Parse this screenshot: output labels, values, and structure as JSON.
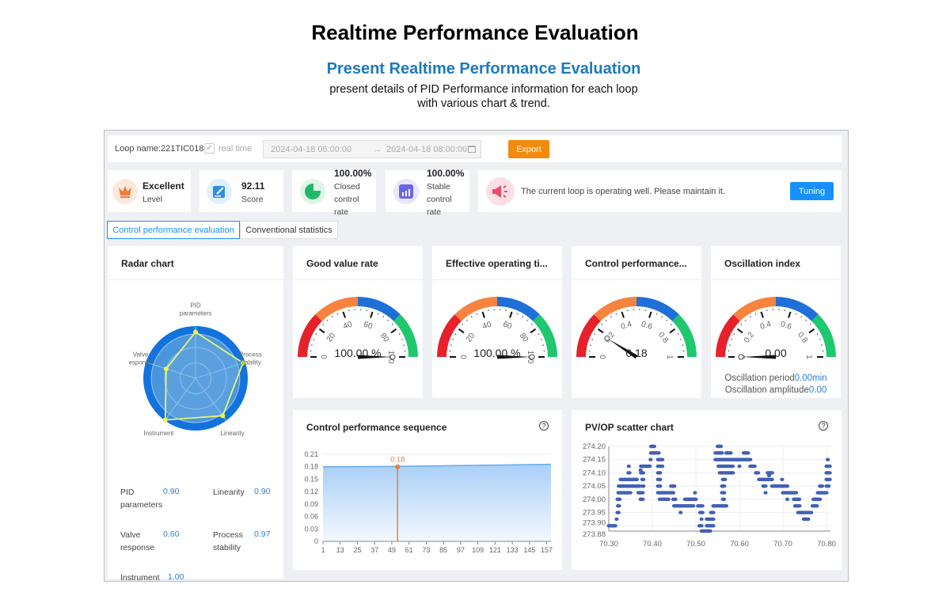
{
  "header": {
    "title": "Realtime Performance Evaluation",
    "subtitle": "Present Realtime Performance Evaluation",
    "desc_line1": "present details of PID Performance information for each loop",
    "desc_line2": "with various chart & trend."
  },
  "toolbar": {
    "loop_label": "Loop name:",
    "loop_name": "221TIC018",
    "realtime_label": "real time",
    "realtime_checked": true,
    "start_time": "2024-04-18 06:00:00",
    "arrow": "→",
    "end_time": "2024-04-18 08:00:00",
    "export_label": "Export"
  },
  "stats": [
    {
      "value": "Excellent",
      "label": "Level",
      "icon": "crown-icon"
    },
    {
      "value": "92.11",
      "label": "Score",
      "icon": "edit-icon"
    },
    {
      "value": "100.00%",
      "label1": "Closed",
      "label2": "control",
      "label3": "rate",
      "icon": "pie-icon"
    },
    {
      "value": "100.00%",
      "label1": "Stable",
      "label2": "control",
      "label3": "rate",
      "icon": "bar-chart-icon"
    }
  ],
  "message": {
    "text": "The current loop is operating well. Please maintain it.",
    "button": "Tuning",
    "icon": "megaphone-icon"
  },
  "tabs": [
    {
      "label": "Control performance evaluation",
      "active": true
    },
    {
      "label": "Conventional statistics",
      "active": false
    }
  ],
  "radar": {
    "title": "Radar chart",
    "axes": [
      {
        "label1": "PID",
        "label2": "parameters",
        "value": 0.9
      },
      {
        "label1": "Process",
        "label2": "stability",
        "value": 0.97
      },
      {
        "label1": "Linearity",
        "label2": "",
        "value": 0.9
      },
      {
        "label1": "Instrument",
        "label2": "",
        "value": 1.0
      },
      {
        "label1": "Valve",
        "label2": "esponse",
        "value": 0.6
      }
    ],
    "list": [
      {
        "k1": "PID",
        "k2": "parameters",
        "v": "0.90"
      },
      {
        "k1": "Linearity",
        "k2": "",
        "v": "0.90"
      },
      {
        "k1": "Valve",
        "k2": "response",
        "v": "0.60"
      },
      {
        "k1": "Process",
        "k2": "stability",
        "v": "0.97"
      },
      {
        "k1": "Instrument",
        "k2": "",
        "v": "1.00"
      }
    ]
  },
  "gauges": [
    {
      "title": "Good value rate",
      "max": 100,
      "value": 100,
      "display": "100.00 %",
      "ticks": [
        "0",
        "20",
        "40",
        "60",
        "80",
        "100"
      ]
    },
    {
      "title": "Effective operating ti...",
      "max": 100,
      "value": 100,
      "display": "100.00 %",
      "ticks": [
        "0",
        "20",
        "40",
        "60",
        "80",
        "100"
      ]
    },
    {
      "title": "Control performance...",
      "max": 1,
      "value": 0.18,
      "display": "0.18",
      "ticks": [
        "0",
        "0.2",
        "0.4",
        "0.6",
        "0.8",
        "1"
      ]
    },
    {
      "title": "Oscillation index",
      "max": 1,
      "value": 0,
      "display": "0.00",
      "ticks": [
        "0",
        "0.2",
        "0.4",
        "0.6",
        "0.8",
        "1"
      ]
    }
  ],
  "gauge_colors": [
    "#e8202a",
    "#f7833f",
    "#1f6fd8",
    "#1fc86e"
  ],
  "oscillation": {
    "period_label": "Oscillation period",
    "period_value": "0.00min",
    "amp_label": "Oscillation amplitude",
    "amp_value": "0.00"
  },
  "chart_data": [
    {
      "type": "area",
      "title": "Control performance sequence",
      "help_icon": "question-circle-icon",
      "x_ticks": [
        "1",
        "13",
        "25",
        "37",
        "49",
        "61",
        "73",
        "85",
        "97",
        "109",
        "121",
        "133",
        "145",
        "157"
      ],
      "y_ticks": [
        "0",
        "0.03",
        "0.06",
        "0.09",
        "0.12",
        "0.15",
        "0.18",
        "0.21"
      ],
      "ylim": [
        0,
        0.21
      ],
      "xlim": [
        1,
        160
      ],
      "series": [
        {
          "name": "Control performance",
          "x": [
            1,
            40,
            80,
            120,
            160
          ],
          "values": [
            0.18,
            0.1805,
            0.182,
            0.184,
            0.186
          ]
        }
      ],
      "marker": {
        "x": 53,
        "value": 0.18,
        "label": "0.18"
      }
    },
    {
      "type": "scatter",
      "title": "PV/OP scatter chart",
      "help_icon": "question-circle-icon",
      "x_ticks": [
        "70.30",
        "70.40",
        "70.50",
        "70.60",
        "70.70",
        "70.80"
      ],
      "y_ticks": [
        "273.88",
        "273.90",
        "273.95",
        "274.00",
        "274.05",
        "274.10",
        "274.15",
        "274.20"
      ],
      "xlim": [
        70.3,
        70.8
      ],
      "ylim": [
        273.88,
        274.2
      ],
      "runs": [
        [
          70.3,
          70.317,
          273.9
        ],
        [
          70.318,
          70.32,
          273.925
        ],
        [
          70.32,
          70.324,
          273.95
        ],
        [
          70.321,
          70.325,
          273.975
        ],
        [
          70.32,
          70.325,
          274.0
        ],
        [
          70.322,
          70.35,
          274.025
        ],
        [
          70.323,
          70.36,
          274.05
        ],
        [
          70.327,
          70.366,
          274.075
        ],
        [
          70.345,
          70.349,
          274.1
        ],
        [
          70.346,
          70.348,
          274.125
        ],
        [
          70.36,
          70.37,
          274.05
        ],
        [
          70.368,
          70.38,
          274.025
        ],
        [
          70.373,
          70.38,
          274.0
        ],
        [
          70.374,
          70.38,
          274.1
        ],
        [
          70.374,
          70.395,
          274.125
        ],
        [
          70.377,
          70.381,
          274.075
        ],
        [
          70.377,
          70.38,
          274.05
        ],
        [
          70.373,
          70.375,
          274.11
        ],
        [
          70.396,
          70.398,
          274.15
        ],
        [
          70.397,
          70.405,
          274.2
        ],
        [
          70.397,
          70.415,
          274.175
        ],
        [
          70.413,
          70.423,
          274.15
        ],
        [
          70.413,
          70.424,
          274.125
        ],
        [
          70.413,
          70.42,
          274.1
        ],
        [
          70.413,
          70.418,
          274.075
        ],
        [
          70.413,
          70.42,
          274.05
        ],
        [
          70.413,
          70.45,
          274.025
        ],
        [
          70.417,
          70.437,
          274.0
        ],
        [
          70.443,
          70.451,
          274.05
        ],
        [
          70.448,
          70.455,
          274.0
        ],
        [
          70.45,
          70.475,
          273.975
        ],
        [
          70.465,
          70.467,
          273.95
        ],
        [
          70.475,
          70.5,
          274.0
        ],
        [
          70.479,
          70.495,
          273.975
        ],
        [
          70.498,
          70.5,
          274.025
        ],
        [
          70.505,
          70.515,
          273.975
        ],
        [
          70.51,
          70.515,
          273.95
        ],
        [
          70.513,
          70.515,
          273.925
        ],
        [
          70.508,
          70.515,
          273.9
        ],
        [
          70.513,
          70.535,
          273.88
        ],
        [
          70.525,
          70.54,
          273.9
        ],
        [
          70.525,
          70.54,
          273.925
        ],
        [
          70.535,
          70.542,
          273.95
        ],
        [
          70.54,
          70.57,
          273.975
        ],
        [
          70.55,
          70.558,
          274.2
        ],
        [
          70.545,
          70.56,
          274.175
        ],
        [
          70.545,
          70.6,
          274.15
        ],
        [
          70.552,
          70.585,
          274.125
        ],
        [
          70.555,
          70.585,
          274.1
        ],
        [
          70.57,
          70.58,
          274.175
        ],
        [
          70.562,
          70.568,
          274.075
        ],
        [
          70.56,
          70.567,
          274.05
        ],
        [
          70.56,
          70.567,
          274.025
        ],
        [
          70.562,
          70.566,
          274.0
        ],
        [
          70.59,
          70.625,
          274.15
        ],
        [
          70.61,
          70.62,
          274.175
        ],
        [
          70.6,
          70.6,
          274.125
        ],
        [
          70.625,
          70.635,
          274.125
        ],
        [
          70.638,
          70.645,
          274.1
        ],
        [
          70.645,
          70.675,
          274.075
        ],
        [
          70.655,
          70.66,
          274.05
        ],
        [
          70.66,
          70.66,
          274.025
        ],
        [
          70.665,
          70.675,
          274.1
        ],
        [
          70.668,
          70.67,
          274.09
        ],
        [
          70.675,
          70.71,
          274.05
        ],
        [
          70.698,
          70.698,
          274.075
        ],
        [
          70.7,
          70.732,
          274.025
        ],
        [
          70.71,
          70.71,
          274.0
        ],
        [
          70.725,
          70.738,
          274.0
        ],
        [
          70.728,
          70.74,
          273.975
        ],
        [
          70.735,
          70.745,
          273.95
        ],
        [
          70.745,
          70.765,
          273.95
        ],
        [
          70.748,
          70.76,
          273.925
        ],
        [
          70.768,
          70.78,
          273.975
        ],
        [
          70.77,
          70.785,
          274.0
        ],
        [
          70.78,
          70.8,
          274.025
        ],
        [
          70.785,
          70.792,
          274.05
        ],
        [
          70.8,
          70.806,
          274.05
        ],
        [
          70.8,
          70.808,
          274.075
        ],
        [
          70.8,
          70.808,
          274.1
        ],
        [
          70.8,
          70.808,
          274.125
        ],
        [
          70.803,
          70.803,
          274.15
        ]
      ]
    }
  ]
}
